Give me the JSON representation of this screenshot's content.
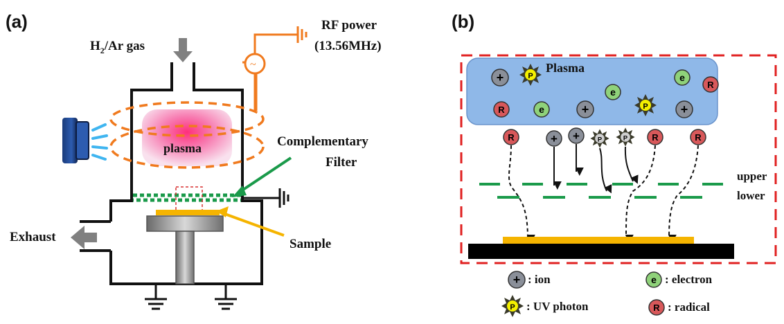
{
  "panel_a": {
    "label": "(a)",
    "gas_label_main": "H",
    "gas_label_sub": "2",
    "gas_label_rest": "/Ar gas",
    "rf_line1": "RF power",
    "rf_line2": "(13.56MHz)",
    "plasma_label": "plasma",
    "filter_line1": "Complementary",
    "filter_line2": "Filter",
    "exhaust_label": "Exhaust",
    "sample_label": "Sample"
  },
  "panel_b": {
    "label": "(b)",
    "plasma_label": "Plasma",
    "upper_label": "upper",
    "lower_label": "lower",
    "plus_symbol": "+",
    "electron_symbol": "e",
    "radical_symbol": "R",
    "photon_symbol": "P"
  },
  "legend": {
    "ion": ": ion",
    "electron": ": electron",
    "photon": ": UV photon",
    "radical": ": radical"
  },
  "colors": {
    "orange": "#f07a1e",
    "green": "#1a9a4a",
    "gold": "#f5b400",
    "red_dash": "#e02020",
    "plasma_blue": "#8fb8e8",
    "ion_gray": "#8a8f99",
    "electron_green": "#8fd27a",
    "radical_red": "#d8585a",
    "photon_yellow": "#f4f000"
  }
}
